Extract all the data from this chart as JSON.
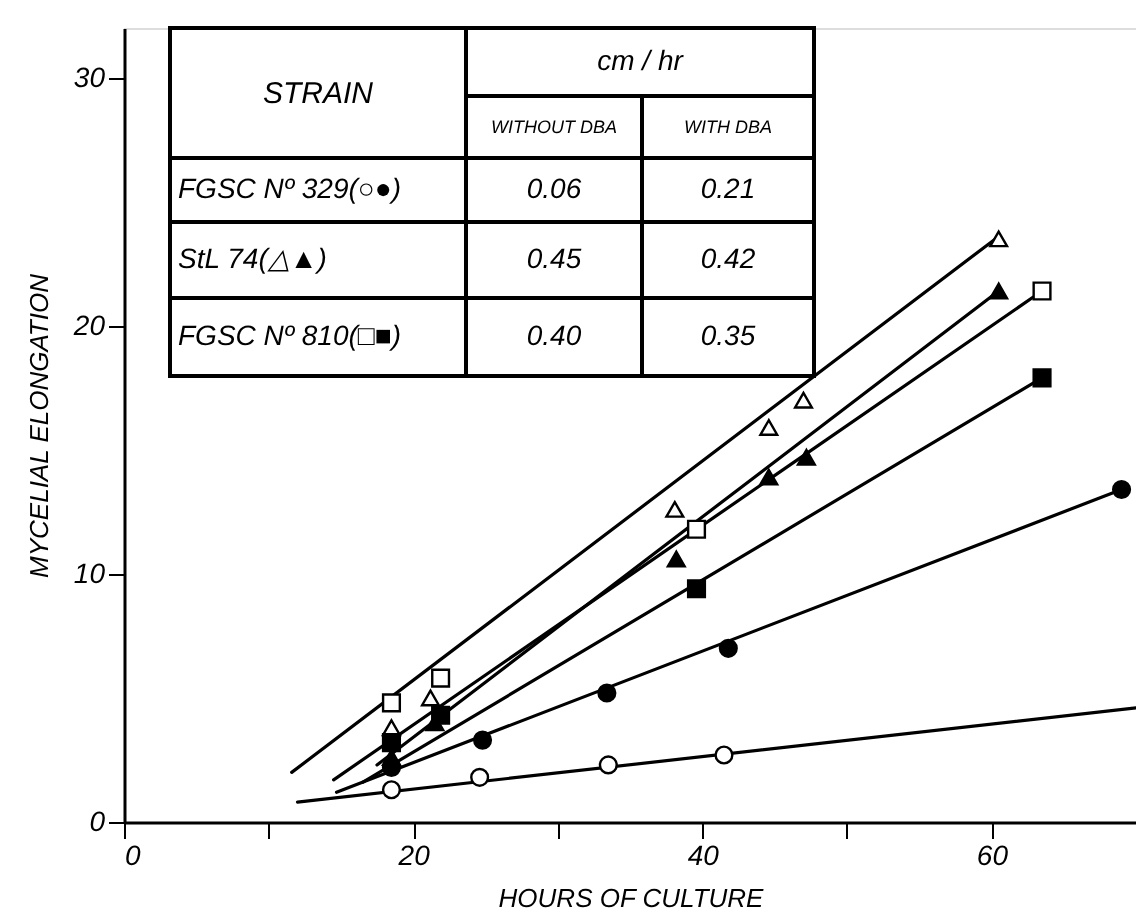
{
  "chart_data": {
    "type": "scatter",
    "xlabel": "HOURS  OF  CULTURE",
    "ylabel": "MYCELIAL  ELONGATION",
    "xlim": [
      0,
      70
    ],
    "ylim": [
      0,
      32
    ],
    "xticks": [
      0,
      {
        "value": 10,
        "label": null
      },
      20,
      {
        "value": 30,
        "label": null
      },
      40,
      {
        "value": 50,
        "label": null
      },
      60
    ],
    "yticks": [
      0,
      10,
      20,
      30
    ],
    "grid": false,
    "series": [
      {
        "type": "line",
        "color": "#000000",
        "x": [
          12,
          70
        ],
        "values": [
          0.8,
          4.6
        ]
      },
      {
        "type": "line",
        "color": "#000000",
        "x": [
          14.7,
          69
        ],
        "values": [
          1.2,
          13.4
        ]
      },
      {
        "type": "line",
        "color": "#000000",
        "x": [
          11.6,
          60.5
        ],
        "values": [
          2.0,
          23.6
        ]
      },
      {
        "type": "line",
        "color": "#000000",
        "x": [
          17.5,
          60.5
        ],
        "values": [
          2.3,
          21.4
        ]
      },
      {
        "type": "line",
        "color": "#000000",
        "x": [
          14.5,
          63.5
        ],
        "values": [
          1.7,
          21.4
        ]
      },
      {
        "type": "line",
        "color": "#000000",
        "x": [
          16.5,
          63.5
        ],
        "values": [
          1.6,
          17.9
        ]
      },
      {
        "marker": "circle",
        "color": "#ffffff",
        "x": [
          18.5,
          24.6,
          33.5,
          41.5
        ],
        "values": [
          1.3,
          1.8,
          2.3,
          2.7
        ]
      },
      {
        "marker": "circle",
        "color": "#000000",
        "x": [
          18.5,
          24.8,
          33.4,
          41.8,
          69
        ],
        "values": [
          2.2,
          3.3,
          5.2,
          7.0,
          13.4
        ]
      },
      {
        "marker": "triangle",
        "color": "#ffffff",
        "x": [
          18.5,
          21.2,
          38.1,
          44.6,
          47.0,
          60.5
        ],
        "values": [
          3.8,
          5.0,
          12.6,
          15.9,
          17.0,
          23.5
        ]
      },
      {
        "marker": "triangle",
        "color": "#000000",
        "x": [
          18.5,
          21.5,
          38.2,
          44.6,
          47.2,
          60.5
        ],
        "values": [
          2.6,
          4.0,
          10.6,
          13.9,
          14.7,
          21.4
        ]
      },
      {
        "marker": "square",
        "color": "#ffffff",
        "x": [
          18.5,
          21.9,
          39.6,
          63.5
        ],
        "values": [
          4.8,
          5.8,
          11.8,
          21.4
        ]
      },
      {
        "marker": "square",
        "color": "#000000",
        "x": [
          18.5,
          21.9,
          39.6,
          63.5
        ],
        "values": [
          3.2,
          4.3,
          9.4,
          17.9
        ]
      }
    ],
    "annotations": [
      "STRAIN",
      "cm / hr",
      "WITHOUT DBA",
      "WITH DBA",
      "FGSC Nº 329(○●)",
      "0.06",
      "0.21",
      "StL 74(△▲)",
      "0.45",
      "0.42",
      "FGSC Nº 810(□■)",
      "0.40",
      "0.35"
    ]
  }
}
